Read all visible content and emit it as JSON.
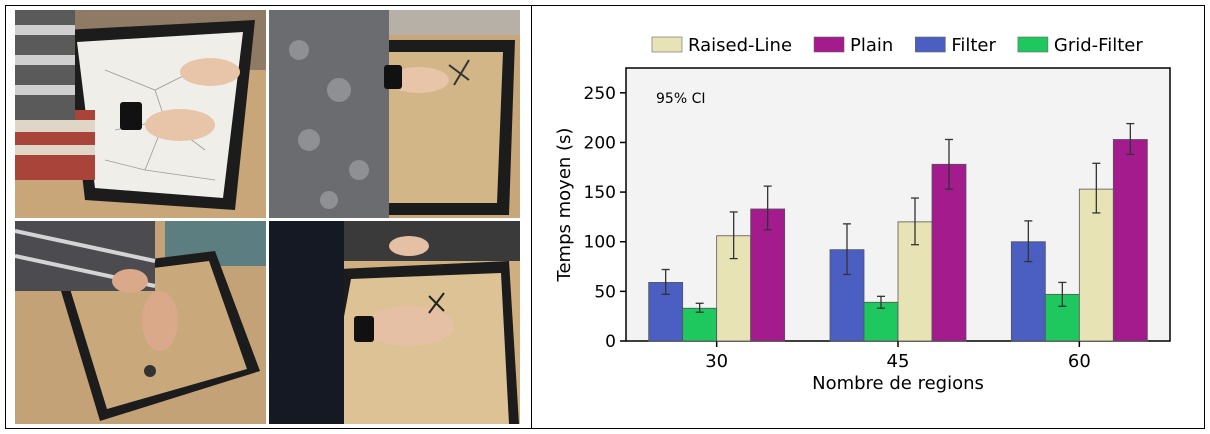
{
  "photos": [
    {
      "name": "photo-top-left"
    },
    {
      "name": "photo-top-right"
    },
    {
      "name": "photo-bottom-left"
    },
    {
      "name": "photo-bottom-right"
    }
  ],
  "chart_data": {
    "type": "bar",
    "title": "",
    "xlabel": "Nombre de regions",
    "ylabel": "Temps moyen (s)",
    "annotation": "95% CI",
    "categories": [
      "30",
      "45",
      "60"
    ],
    "ylim": [
      0,
      275
    ],
    "yticks": [
      0,
      50,
      100,
      150,
      200,
      250
    ],
    "grid": false,
    "legend_position": "top",
    "legend_order": [
      "Raised-Line",
      "Plain",
      "Filter",
      "Grid-Filter"
    ],
    "series": [
      {
        "name": "Filter",
        "color": "#4a5fc1",
        "values": [
          59,
          92,
          100
        ],
        "ci_low": [
          47,
          67,
          80
        ],
        "ci_high": [
          72,
          118,
          121
        ]
      },
      {
        "name": "Grid-Filter",
        "color": "#1ec85f",
        "values": [
          33,
          39,
          47
        ],
        "ci_low": [
          29,
          33,
          35
        ],
        "ci_high": [
          38,
          45,
          59
        ]
      },
      {
        "name": "Raised-Line",
        "color": "#e8e3b5",
        "values": [
          106,
          120,
          153
        ],
        "ci_low": [
          83,
          97,
          129
        ],
        "ci_high": [
          130,
          144,
          179
        ]
      },
      {
        "name": "Plain",
        "color": "#a31b8c",
        "values": [
          133,
          178,
          203
        ],
        "ci_low": [
          112,
          153,
          188
        ],
        "ci_high": [
          156,
          203,
          219
        ]
      }
    ]
  }
}
